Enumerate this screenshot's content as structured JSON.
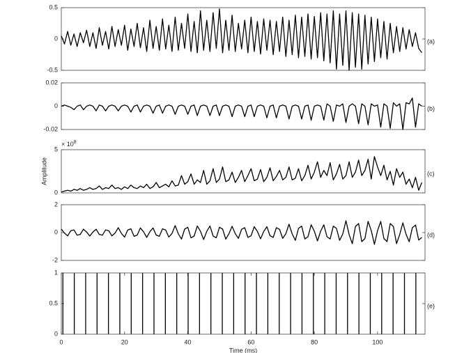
{
  "chart_data": [
    {
      "type": "line",
      "panel_label": "(a)",
      "xlim": [
        0,
        115
      ],
      "ylim": [
        -0.5,
        0.5
      ],
      "yticks": [
        -0.5,
        0,
        0.5
      ],
      "color": "#000000",
      "x": [
        0,
        1,
        2,
        3,
        4,
        5,
        6,
        7,
        8,
        9,
        10,
        11,
        12,
        13,
        14,
        15,
        16,
        17,
        18,
        19,
        20,
        21,
        22,
        23,
        24,
        25,
        26,
        27,
        28,
        29,
        30,
        31,
        32,
        33,
        34,
        35,
        36,
        37,
        38,
        39,
        40,
        41,
        42,
        43,
        44,
        45,
        46,
        47,
        48,
        49,
        50,
        51,
        52,
        53,
        54,
        55,
        56,
        57,
        58,
        59,
        60,
        61,
        62,
        63,
        64,
        65,
        66,
        67,
        68,
        69,
        70,
        71,
        72,
        73,
        74,
        75,
        76,
        77,
        78,
        79,
        80,
        81,
        82,
        83,
        84,
        85,
        86,
        87,
        88,
        89,
        90,
        91,
        92,
        93,
        94,
        95,
        96,
        97,
        98,
        99,
        100,
        101,
        102,
        103,
        104,
        105,
        106,
        107,
        108,
        109,
        110,
        111,
        112,
        113,
        114
      ],
      "values": [
        0.05,
        -0.08,
        0.12,
        -0.1,
        0.08,
        -0.12,
        0.1,
        -0.06,
        0.14,
        -0.12,
        0.1,
        -0.15,
        0.18,
        -0.1,
        0.12,
        -0.16,
        0.2,
        -0.12,
        0.15,
        -0.1,
        0.22,
        -0.18,
        0.16,
        -0.12,
        0.25,
        -0.14,
        0.18,
        -0.2,
        0.3,
        -0.15,
        0.2,
        -0.18,
        0.32,
        -0.16,
        0.22,
        -0.2,
        0.35,
        -0.18,
        0.25,
        -0.15,
        0.4,
        -0.2,
        0.28,
        -0.22,
        0.45,
        -0.18,
        0.3,
        -0.2,
        0.42,
        -0.15,
        0.48,
        -0.22,
        0.3,
        -0.18,
        0.38,
        -0.2,
        0.25,
        -0.16,
        0.3,
        -0.22,
        0.35,
        -0.2,
        0.28,
        -0.24,
        0.32,
        -0.18,
        0.3,
        -0.25,
        0.28,
        -0.2,
        0.35,
        -0.28,
        0.3,
        -0.25,
        0.38,
        -0.3,
        0.35,
        -0.28,
        0.4,
        -0.32,
        0.36,
        -0.3,
        0.42,
        -0.35,
        0.4,
        -0.38,
        0.45,
        -0.48,
        0.4,
        -0.42,
        0.45,
        -0.5,
        0.42,
        -0.45,
        0.4,
        -0.48,
        0.38,
        -0.4,
        0.35,
        -0.36,
        0.32,
        -0.3,
        0.28,
        -0.32,
        0.25,
        -0.22,
        0.2,
        -0.2,
        0.18,
        -0.16,
        0.15,
        -0.12,
        0.1,
        -0.15,
        -0.22
      ]
    },
    {
      "type": "line",
      "panel_label": "(b)",
      "xlim": [
        0,
        115
      ],
      "ylim": [
        -0.02,
        0.02
      ],
      "yticks": [
        -0.02,
        0,
        0.02
      ],
      "color": "#000000",
      "x": [
        0,
        1,
        2,
        3,
        4,
        5,
        6,
        7,
        8,
        9,
        10,
        11,
        12,
        13,
        14,
        15,
        16,
        17,
        18,
        19,
        20,
        21,
        22,
        23,
        24,
        25,
        26,
        27,
        28,
        29,
        30,
        31,
        32,
        33,
        34,
        35,
        36,
        37,
        38,
        39,
        40,
        41,
        42,
        43,
        44,
        45,
        46,
        47,
        48,
        49,
        50,
        51,
        52,
        53,
        54,
        55,
        56,
        57,
        58,
        59,
        60,
        61,
        62,
        63,
        64,
        65,
        66,
        67,
        68,
        69,
        70,
        71,
        72,
        73,
        74,
        75,
        76,
        77,
        78,
        79,
        80,
        81,
        82,
        83,
        84,
        85,
        86,
        87,
        88,
        89,
        90,
        91,
        92,
        93,
        94,
        95,
        96,
        97,
        98,
        99,
        100,
        101,
        102,
        103,
        104,
        105,
        106,
        107,
        108,
        109,
        110,
        111,
        112,
        113,
        114
      ],
      "values": [
        0,
        0.001,
        0,
        -0.001,
        -0.003,
        0,
        0.001,
        -0.003,
        0,
        0.001,
        0,
        -0.004,
        0.001,
        0,
        -0.004,
        0,
        0.001,
        0,
        -0.004,
        0,
        0.001,
        0,
        -0.005,
        0,
        0.001,
        -0.005,
        0,
        0.001,
        0,
        -0.006,
        0,
        0.001,
        -0.006,
        0,
        0.001,
        0,
        -0.007,
        0,
        0.001,
        0,
        -0.007,
        0,
        0.001,
        -0.008,
        0,
        0.001,
        0,
        -0.008,
        0,
        0.001,
        -0.008,
        0,
        0.001,
        0,
        -0.009,
        0,
        0.001,
        0,
        -0.009,
        0,
        0.001,
        -0.009,
        0,
        0.001,
        0,
        -0.01,
        0,
        0.001,
        -0.01,
        0,
        0.001,
        0,
        -0.011,
        0,
        0.001,
        0,
        -0.011,
        0,
        0.001,
        -0.012,
        0,
        0.001,
        0,
        -0.012,
        0.002,
        0,
        -0.013,
        0.001,
        0,
        0.002,
        -0.014,
        0,
        0.002,
        0,
        -0.015,
        0.002,
        0,
        -0.016,
        0.002,
        0,
        0.001,
        -0.018,
        0.002,
        0,
        -0.019,
        0.003,
        0,
        0.002,
        -0.02,
        0.003,
        0.002,
        0.007,
        -0.018,
        0.002,
        0
      ]
    },
    {
      "type": "line",
      "panel_label": "(c)",
      "ylabel": "Amplitude",
      "y_exponent": {
        "base": "× 10",
        "power": "8"
      },
      "xlim": [
        0,
        115
      ],
      "ylim": [
        0,
        5
      ],
      "yticks": [
        0,
        5
      ],
      "color": "#000000",
      "x": [
        0,
        1,
        2,
        3,
        4,
        5,
        6,
        7,
        8,
        9,
        10,
        11,
        12,
        13,
        14,
        15,
        16,
        17,
        18,
        19,
        20,
        21,
        22,
        23,
        24,
        25,
        26,
        27,
        28,
        29,
        30,
        31,
        32,
        33,
        34,
        35,
        36,
        37,
        38,
        39,
        40,
        41,
        42,
        43,
        44,
        45,
        46,
        47,
        48,
        49,
        50,
        51,
        52,
        53,
        54,
        55,
        56,
        57,
        58,
        59,
        60,
        61,
        62,
        63,
        64,
        65,
        66,
        67,
        68,
        69,
        70,
        71,
        72,
        73,
        74,
        75,
        76,
        77,
        78,
        79,
        80,
        81,
        82,
        83,
        84,
        85,
        86,
        87,
        88,
        89,
        90,
        91,
        92,
        93,
        94,
        95,
        96,
        97,
        98,
        99,
        100,
        101,
        102,
        103,
        104,
        105,
        106,
        107,
        108,
        109,
        110,
        111,
        112,
        113,
        114
      ],
      "values": [
        0.1,
        0.2,
        0.3,
        0.2,
        0.4,
        0.3,
        0.5,
        0.3,
        0.4,
        0.6,
        0.4,
        0.5,
        0.8,
        0.4,
        0.6,
        0.5,
        0.9,
        0.5,
        0.6,
        0.4,
        0.7,
        0.5,
        0.9,
        0.6,
        0.5,
        0.8,
        0.6,
        1.0,
        0.5,
        0.7,
        1.2,
        0.6,
        0.8,
        1.0,
        0.7,
        1.4,
        0.8,
        0.9,
        2.0,
        1.0,
        1.3,
        2.2,
        1.0,
        1.5,
        1.2,
        2.6,
        1.0,
        1.4,
        2.8,
        1.2,
        1.6,
        3.0,
        1.3,
        1.5,
        2.4,
        1.2,
        1.8,
        2.6,
        1.3,
        2.0,
        2.8,
        1.4,
        1.6,
        2.7,
        1.3,
        1.8,
        2.9,
        1.4,
        1.9,
        2.6,
        1.5,
        1.8,
        3.0,
        1.5,
        1.7,
        2.8,
        1.4,
        2.0,
        3.2,
        1.6,
        2.4,
        3.6,
        1.8,
        2.6,
        2.0,
        3.5,
        1.5,
        2.2,
        3.3,
        1.6,
        2.0,
        3.6,
        1.8,
        2.4,
        3.8,
        2.0,
        2.6,
        3.9,
        1.6,
        4.2,
        3.0,
        2.0,
        3.2,
        1.5,
        2.5,
        0.9,
        2.8,
        1.8,
        2.4,
        1.0,
        1.6,
        0.6,
        1.8,
        0.3,
        1.2
      ]
    },
    {
      "type": "line",
      "panel_label": "(d)",
      "xlim": [
        0,
        115
      ],
      "ylim": [
        -2,
        2
      ],
      "yticks": [
        -2,
        0,
        2
      ],
      "color": "#000000",
      "x": [
        0,
        1,
        2,
        3,
        4,
        5,
        6,
        7,
        8,
        9,
        10,
        11,
        12,
        13,
        14,
        15,
        16,
        17,
        18,
        19,
        20,
        21,
        22,
        23,
        24,
        25,
        26,
        27,
        28,
        29,
        30,
        31,
        32,
        33,
        34,
        35,
        36,
        37,
        38,
        39,
        40,
        41,
        42,
        43,
        44,
        45,
        46,
        47,
        48,
        49,
        50,
        51,
        52,
        53,
        54,
        55,
        56,
        57,
        58,
        59,
        60,
        61,
        62,
        63,
        64,
        65,
        66,
        67,
        68,
        69,
        70,
        71,
        72,
        73,
        74,
        75,
        76,
        77,
        78,
        79,
        80,
        81,
        82,
        83,
        84,
        85,
        86,
        87,
        88,
        89,
        90,
        91,
        92,
        93,
        94,
        95,
        96,
        97,
        98,
        99,
        100,
        101,
        102,
        103,
        104,
        105,
        106,
        107,
        108,
        109,
        110,
        111,
        112,
        113,
        114
      ],
      "values": [
        0.25,
        -0.04,
        -0.24,
        0.13,
        0.19,
        -0.19,
        -0.13,
        0.24,
        0.04,
        -0.25,
        0.04,
        0.24,
        -0.13,
        -0.19,
        0.19,
        0.13,
        -0.24,
        -0.04,
        0.35,
        -0.06,
        -0.33,
        0.18,
        0.27,
        -0.27,
        -0.18,
        0.33,
        0.06,
        -0.35,
        0.06,
        0.33,
        -0.18,
        -0.27,
        0.27,
        0.18,
        -0.33,
        -0.06,
        0.5,
        -0.09,
        -0.47,
        0.25,
        0.38,
        -0.38,
        -0.25,
        0.47,
        0.09,
        -0.5,
        0.09,
        0.47,
        -0.25,
        -0.38,
        0.38,
        0.25,
        -0.47,
        -0.09,
        0.45,
        -0.08,
        -0.42,
        0.23,
        0.35,
        -0.35,
        -0.23,
        0.42,
        0.08,
        -0.45,
        0.08,
        0.42,
        -0.23,
        -0.35,
        0.35,
        0.23,
        -0.42,
        -0.08,
        0.6,
        -0.1,
        -0.56,
        0.3,
        0.46,
        -0.46,
        -0.3,
        0.56,
        0.1,
        -0.6,
        0.1,
        0.56,
        -0.3,
        -0.46,
        0.46,
        0.3,
        -0.56,
        -0.1,
        0.85,
        -0.14,
        -0.8,
        0.43,
        0.65,
        -0.65,
        -0.43,
        0.8,
        0.14,
        -0.85,
        0.14,
        0.8,
        -0.43,
        -0.65,
        0.65,
        0.43,
        -0.8,
        -0.14,
        0.7,
        -0.12,
        -0.66,
        0.35,
        0.54,
        -0.54,
        -0.35
      ]
    },
    {
      "type": "stem",
      "panel_label": "(e)",
      "xlabel": "Time (ms)",
      "xlim": [
        0,
        115
      ],
      "xticks": [
        0,
        20,
        40,
        60,
        80,
        100
      ],
      "ylim": [
        0,
        1
      ],
      "yticks": [
        0,
        0.5,
        1
      ],
      "color": "#000000",
      "x": [
        0.5,
        4.1,
        7.7,
        11.3,
        14.9,
        18.5,
        22.1,
        25.7,
        29.3,
        32.9,
        36.5,
        40.1,
        43.7,
        47.3,
        50.9,
        54.5,
        58.1,
        61.7,
        65.3,
        68.9,
        72.5,
        76.1,
        79.7,
        83.3,
        86.9,
        90.5,
        94.1,
        97.7,
        101.3,
        104.9,
        108.5,
        112.1
      ],
      "values": [
        1,
        1,
        1,
        1,
        1,
        1,
        1,
        1,
        1,
        1,
        1,
        1,
        1,
        1,
        1,
        1,
        1,
        1,
        1,
        1,
        1,
        1,
        1,
        1,
        1,
        1,
        1,
        1,
        1,
        1,
        1,
        1
      ]
    }
  ]
}
